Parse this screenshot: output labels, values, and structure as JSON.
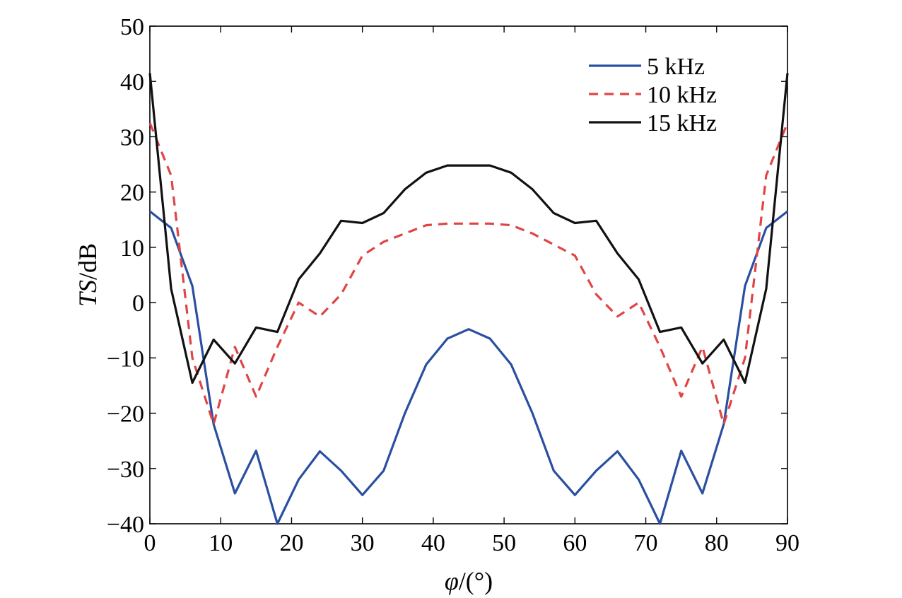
{
  "chart_data": {
    "type": "line",
    "title": "",
    "xlabel_symbol": "φ",
    "xlabel_unit": "/(°)",
    "ylabel_symbol": "TS",
    "ylabel_unit": "/dB",
    "xlim": [
      0,
      90
    ],
    "ylim": [
      -40,
      50
    ],
    "xticks": [
      0,
      10,
      20,
      30,
      40,
      50,
      60,
      70,
      80,
      90
    ],
    "yticks": [
      -40,
      -30,
      -20,
      -10,
      0,
      10,
      20,
      30,
      40,
      50
    ],
    "ytick_labels": [
      "−40",
      "−30",
      "−20",
      "−10",
      "0",
      "10",
      "20",
      "30",
      "40",
      "50"
    ],
    "grid": false,
    "legend_position": "top-right",
    "x": [
      0,
      3,
      6,
      9,
      12,
      15,
      18,
      21,
      24,
      27,
      30,
      33,
      36,
      39,
      42,
      45,
      48,
      51,
      54,
      57,
      60,
      63,
      66,
      69,
      72,
      75,
      78,
      81,
      84,
      87,
      90
    ],
    "series": [
      {
        "name": "5 kHz",
        "color": "#2a4fa0",
        "dash": "solid",
        "values": [
          16.5,
          13.5,
          3,
          -22,
          -34.5,
          -26.8,
          -40,
          -32,
          -26.9,
          -30.4,
          -34.8,
          -30.4,
          -20,
          -11.2,
          -6.5,
          -4.8,
          -6.5,
          -11.2,
          -20,
          -30.4,
          -34.8,
          -30.4,
          -26.9,
          -32,
          -40,
          -26.8,
          -34.5,
          -22,
          3,
          13.5,
          16.5
        ]
      },
      {
        "name": "10 kHz",
        "color": "#e04545",
        "dash": "dashed",
        "values": [
          32.5,
          23,
          -10,
          -22,
          -8,
          -17,
          -8,
          0,
          -2.5,
          1.5,
          8.5,
          11,
          12.5,
          14,
          14.3,
          14.3,
          14.3,
          14,
          12.5,
          10.5,
          8.5,
          1.5,
          -2.5,
          0,
          -8,
          -17,
          -8,
          -22,
          -10,
          23,
          32.5
        ]
      },
      {
        "name": "15 kHz",
        "color": "#111111",
        "dash": "solid",
        "values": [
          41.5,
          2.5,
          -14.5,
          -6.7,
          -11,
          -4.5,
          -5.3,
          4.2,
          8.9,
          14.8,
          14.4,
          16.2,
          20.5,
          23.5,
          24.8,
          24.8,
          24.8,
          23.5,
          20.5,
          16.2,
          14.4,
          14.8,
          8.9,
          4.2,
          -5.3,
          -4.5,
          -11,
          -6.7,
          -14.5,
          2.5,
          41.5
        ]
      }
    ]
  }
}
